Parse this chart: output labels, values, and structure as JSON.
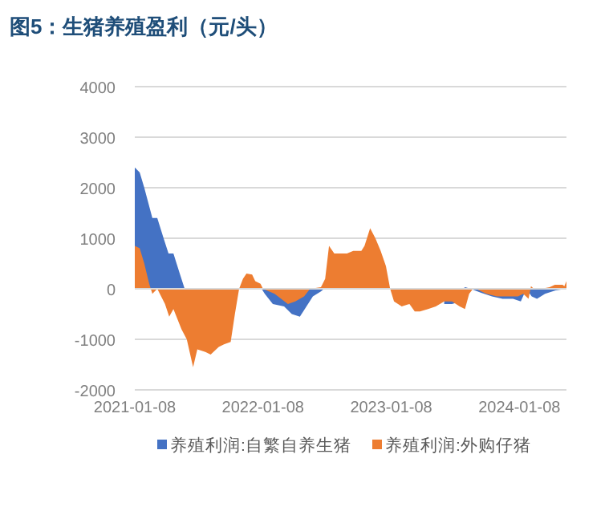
{
  "chart_data": {
    "type": "area",
    "title": "图5：生猪养殖盈利（元/头）",
    "legend": "bottom",
    "grid": "y",
    "xlim": [
      "2021-01-08",
      "2024-05-21"
    ],
    "xticks": [
      {
        "value": "2021-01-08",
        "label": "2021-01-08"
      },
      {
        "value": "2022-01-08",
        "label": "2022-01-08"
      },
      {
        "value": "2023-01-08",
        "label": "2023-01-08"
      },
      {
        "value": "2024-01-08",
        "label": "2024-01-08"
      }
    ],
    "ylim": [
      -2000,
      4000
    ],
    "yticks": [
      -2000,
      -1000,
      0,
      1000,
      2000,
      3000,
      4000
    ],
    "series": [
      {
        "name": "养殖利润:自繁自养生猪",
        "color": "#4472c4",
        "x": [
          "2021-01-08",
          "2021-01-22",
          "2021-02-04",
          "2021-02-27",
          "2021-03-13",
          "2021-03-31",
          "2021-04-14",
          "2021-04-28",
          "2021-05-16",
          "2021-05-30",
          "2021-06-15",
          "2022-01-04",
          "2022-01-13",
          "2022-02-05",
          "2022-03-09",
          "2022-03-31",
          "2022-04-23",
          "2022-05-07",
          "2022-05-30",
          "2022-06-22",
          "2022-07-01",
          "2022-08-01",
          "2023-06-08",
          "2023-06-30",
          "2023-07-10",
          "2023-07-20",
          "2023-07-30",
          "2023-08-07",
          "2023-08-22",
          "2023-09-21",
          "2023-10-22",
          "2023-11-21",
          "2023-12-21",
          "2024-01-12",
          "2024-01-28",
          "2024-02-12",
          "2024-02-27",
          "2024-03-21",
          "2024-04-20",
          "2024-05-21"
        ],
        "values": [
          2400,
          2300,
          2000,
          1400,
          1400,
          1000,
          700,
          700,
          300,
          0,
          null,
          0,
          -100,
          -300,
          -350,
          -500,
          -550,
          -400,
          -150,
          -50,
          0,
          null,
          -300,
          -300,
          -280,
          null,
          0,
          30,
          0,
          -80,
          -150,
          -200,
          -200,
          -250,
          0,
          -150,
          -200,
          -100,
          -30,
          0
        ]
      },
      {
        "name": "养殖利润:外购仔猪",
        "color": "#ed7d31",
        "x": [
          "2021-01-08",
          "2021-01-22",
          "2021-02-04",
          "2021-02-18",
          "2021-02-27",
          "2021-03-13",
          "2021-04-04",
          "2021-04-16",
          "2021-04-28",
          "2021-05-21",
          "2021-06-05",
          "2021-06-23",
          "2021-07-05",
          "2021-07-28",
          "2021-08-12",
          "2021-09-04",
          "2021-09-19",
          "2021-10-08",
          "2021-10-20",
          "2021-11-01",
          "2021-11-12",
          "2021-11-22",
          "2021-12-08",
          "2021-12-17",
          "2022-01-01",
          "2022-01-08",
          "2022-02-10",
          "2022-03-20",
          "2022-04-10",
          "2022-05-05",
          "2022-05-22",
          "2022-06-22",
          "2022-07-04",
          "2022-07-15",
          "2022-07-30",
          "2022-09-04",
          "2022-09-22",
          "2022-10-15",
          "2022-10-24",
          "2022-11-09",
          "2022-11-24",
          "2022-12-09",
          "2022-12-24",
          "2023-01-05",
          "2023-01-16",
          "2023-02-07",
          "2023-03-01",
          "2023-03-16",
          "2023-03-31",
          "2023-04-23",
          "2023-05-15",
          "2023-06-08",
          "2023-06-30",
          "2023-07-22",
          "2023-08-06",
          "2023-08-18",
          "2023-08-29",
          "2023-09-06",
          "2023-10-06",
          "2023-11-05",
          "2023-12-05",
          "2024-01-04",
          "2024-01-19",
          "2024-02-03",
          "2024-02-10",
          "2024-02-18",
          "2024-03-19",
          "2024-04-03",
          "2024-04-18",
          "2024-05-10",
          "2024-05-15",
          "2024-05-21"
        ],
        "values": [
          850,
          800,
          500,
          100,
          -100,
          0,
          -300,
          -550,
          -400,
          -800,
          -1000,
          -1550,
          -1200,
          -1250,
          -1300,
          -1150,
          -1100,
          -1050,
          -500,
          0,
          200,
          300,
          280,
          150,
          100,
          0,
          -100,
          -300,
          -250,
          -150,
          0,
          30,
          200,
          850,
          700,
          700,
          750,
          750,
          850,
          1200,
          1000,
          750,
          450,
          0,
          -250,
          -350,
          -300,
          -450,
          -450,
          -400,
          -350,
          -250,
          -250,
          -350,
          -400,
          -100,
          0,
          0,
          -100,
          -150,
          -150,
          -150,
          -100,
          -200,
          50,
          0,
          10,
          30,
          80,
          80,
          50,
          150
        ]
      }
    ]
  }
}
